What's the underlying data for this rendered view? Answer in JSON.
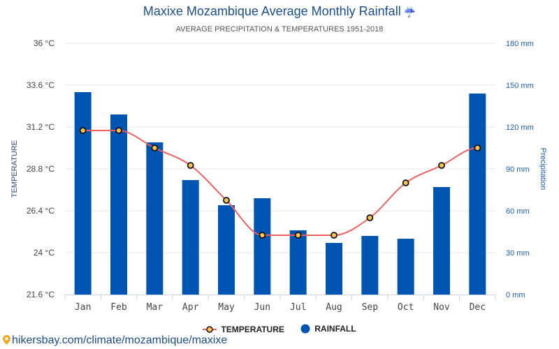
{
  "header": {
    "title": "Maxixe Mozambique Average Monthly Rainfall",
    "title_icon": "umbrella-rain-icon",
    "subtitle": "AVERAGE PRECIPITATION & TEMPERATURES 1951-2018"
  },
  "legend": {
    "temperature_label": "TEMPERATURE",
    "rainfall_label": "RAINFALL"
  },
  "source": {
    "icon": "map-pin-icon",
    "text": "hikersbay.com/climate/mozambique/maxixe"
  },
  "colors": {
    "bar": "#0055b3",
    "line": "#f06060",
    "marker_fill": "#f9c54a",
    "marker_stroke": "#111111",
    "grid": "#e6e6e6",
    "left_axis_text": "#444444",
    "right_axis_text": "#1a5fb4"
  },
  "chart_data": {
    "type": "bar",
    "title": "Maxixe Mozambique Average Monthly Rainfall",
    "subtitle": "AVERAGE PRECIPITATION & TEMPERATURES 1951-2018",
    "categories": [
      "Jan",
      "Feb",
      "Mar",
      "Apr",
      "May",
      "Jun",
      "Jul",
      "Aug",
      "Sep",
      "Oct",
      "Nov",
      "Dec"
    ],
    "series": [
      {
        "name": "RAINFALL",
        "type": "bar",
        "axis": "right",
        "unit": "mm",
        "values": [
          145,
          129,
          109,
          82,
          64,
          69,
          46,
          37,
          42,
          40,
          77,
          144
        ]
      },
      {
        "name": "TEMPERATURE",
        "type": "line",
        "axis": "left",
        "unit": "°C",
        "values": [
          31,
          31,
          30,
          29,
          27,
          25,
          25,
          25,
          26,
          28,
          29,
          30
        ]
      }
    ],
    "ylabel": "TEMPERATURE",
    "y2label": "Precipitation",
    "ylim": [
      21.6,
      36
    ],
    "y2lim": [
      0,
      180
    ],
    "yticks": [
      "21.6 °C",
      "24 °C",
      "26.4 °C",
      "28.8 °C",
      "31.2 °C",
      "33.6 °C",
      "36 °C"
    ],
    "y2ticks": [
      "0 mm",
      "30 mm",
      "60 mm",
      "90 mm",
      "120 mm",
      "150 mm",
      "180 mm"
    ],
    "grid": true,
    "legend": "bottom-center"
  }
}
